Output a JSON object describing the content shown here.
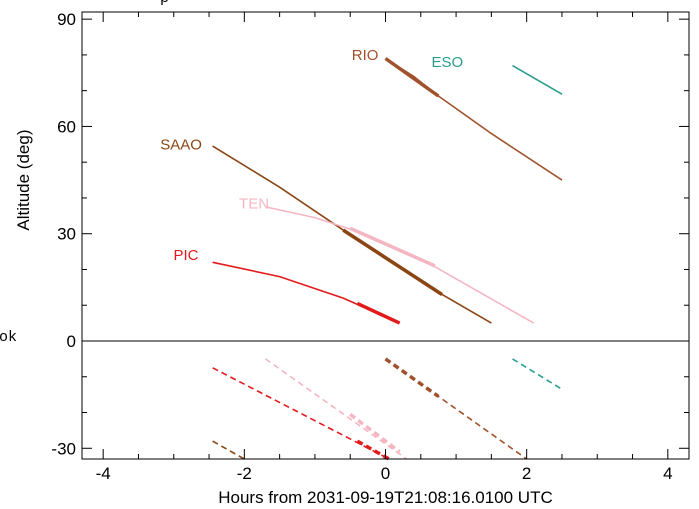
{
  "chart_data": {
    "type": "line",
    "title": "",
    "xlabel": "Hours from 2031-09-19T21:08:16.0100 UTC",
    "ylabel": "Altitude (deg)",
    "xlim": [
      -4.3,
      4.3
    ],
    "ylim": [
      -33,
      92
    ],
    "x_ticks": [
      "-4",
      "-2",
      "0",
      "2",
      "4"
    ],
    "y_ticks": [
      "-30",
      "0",
      "30",
      "60",
      "90"
    ],
    "x_tick_values": [
      -4,
      -2,
      0,
      2,
      4
    ],
    "y_tick_values": [
      -30,
      0,
      30,
      60,
      90
    ],
    "grid": false,
    "horizon_line_y": 0,
    "partial_texts": {
      "top_clipped": "p",
      "left_clipped": "ok"
    },
    "series": [
      {
        "name": "RIO",
        "color": "#a0522d",
        "label_at": [
          -0.1,
          80
        ],
        "above": [
          [
            0,
            79
          ],
          [
            0.4,
            74
          ],
          [
            0.75,
            68.5
          ],
          [
            1.5,
            58
          ],
          [
            2.5,
            45
          ]
        ],
        "above_thick": [
          [
            0,
            79
          ],
          [
            0.75,
            68.5
          ]
        ],
        "below": [
          [
            0,
            -5
          ],
          [
            0.75,
            -15.5
          ],
          [
            2,
            -33
          ]
        ],
        "below_thick": [
          [
            0,
            -5
          ],
          [
            0.75,
            -15.5
          ]
        ]
      },
      {
        "name": "ESO",
        "color": "#2a9d8f",
        "label_at": [
          1.1,
          78
        ],
        "above": [
          [
            1.8,
            77
          ],
          [
            2.5,
            69
          ]
        ],
        "above_thick": [],
        "below": [
          [
            1.8,
            -5
          ],
          [
            2.5,
            -13.5
          ]
        ],
        "below_thick": []
      },
      {
        "name": "SAAO",
        "color": "#8b4513",
        "label_at": [
          -2.6,
          55
        ],
        "above": [
          [
            -2.45,
            54.5
          ],
          [
            -1.5,
            43
          ],
          [
            -0.6,
            31
          ],
          [
            0,
            23
          ],
          [
            0.8,
            13
          ],
          [
            1.5,
            5
          ]
        ],
        "above_thick": [
          [
            -0.6,
            31
          ],
          [
            0.8,
            13
          ]
        ],
        "below": [
          [
            -2.45,
            -28
          ],
          [
            -2.0,
            -33
          ]
        ],
        "below_thick": []
      },
      {
        "name": "TEN",
        "color": "#f4b6c2",
        "label_at": [
          -1.65,
          38.5
        ],
        "above": [
          [
            -1.7,
            37.5
          ],
          [
            -1.0,
            34.5
          ],
          [
            -0.3,
            30
          ],
          [
            0.5,
            23
          ],
          [
            1.3,
            14
          ],
          [
            2.1,
            5
          ]
        ],
        "above_thick": [
          [
            -0.5,
            31.5
          ],
          [
            0.7,
            21
          ]
        ],
        "below": [
          [
            -1.7,
            -5
          ],
          [
            0.3,
            -33
          ]
        ],
        "below_thick": [
          [
            -0.5,
            -20.5
          ],
          [
            0.2,
            -31
          ]
        ]
      },
      {
        "name": "PIC",
        "color": "#e31a1c",
        "label_at": [
          -2.65,
          24
        ],
        "above": [
          [
            -2.45,
            22
          ],
          [
            -1.5,
            18
          ],
          [
            -0.6,
            12
          ],
          [
            0.2,
            5
          ]
        ],
        "above_thick": [
          [
            -0.4,
            10.5
          ],
          [
            0.2,
            5
          ]
        ],
        "below": [
          [
            -2.45,
            -7.5
          ],
          [
            0.05,
            -33
          ]
        ],
        "below_thick": [
          [
            -0.4,
            -28
          ],
          [
            0.05,
            -33
          ]
        ]
      }
    ]
  }
}
